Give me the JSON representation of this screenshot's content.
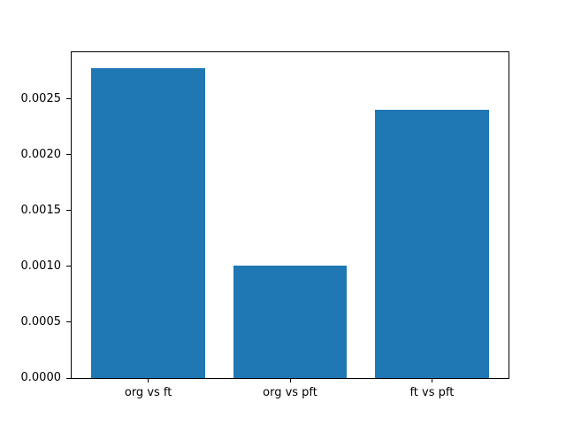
{
  "figure": {
    "background_color": "#ffffff",
    "spine_color": "#000000",
    "text_color": "#000000"
  },
  "chart_data": {
    "type": "bar",
    "title": "",
    "xlabel": "",
    "ylabel": "",
    "categories": [
      "org vs ft",
      "org vs pft",
      "ft vs pft"
    ],
    "values": [
      0.00278,
      0.00101,
      0.0024
    ],
    "ylim": [
      0,
      0.002919
    ],
    "xlim": [
      -0.54,
      2.54
    ],
    "yticks": [
      0,
      0.0005,
      0.001,
      0.0015,
      0.002,
      0.0025
    ],
    "ytick_labels": [
      "0.0000",
      "0.0005",
      "0.0010",
      "0.0015",
      "0.0020",
      "0.0025"
    ],
    "bar_width": 0.8,
    "bar_color": "#1f77b4",
    "grid": false,
    "legend": null
  }
}
